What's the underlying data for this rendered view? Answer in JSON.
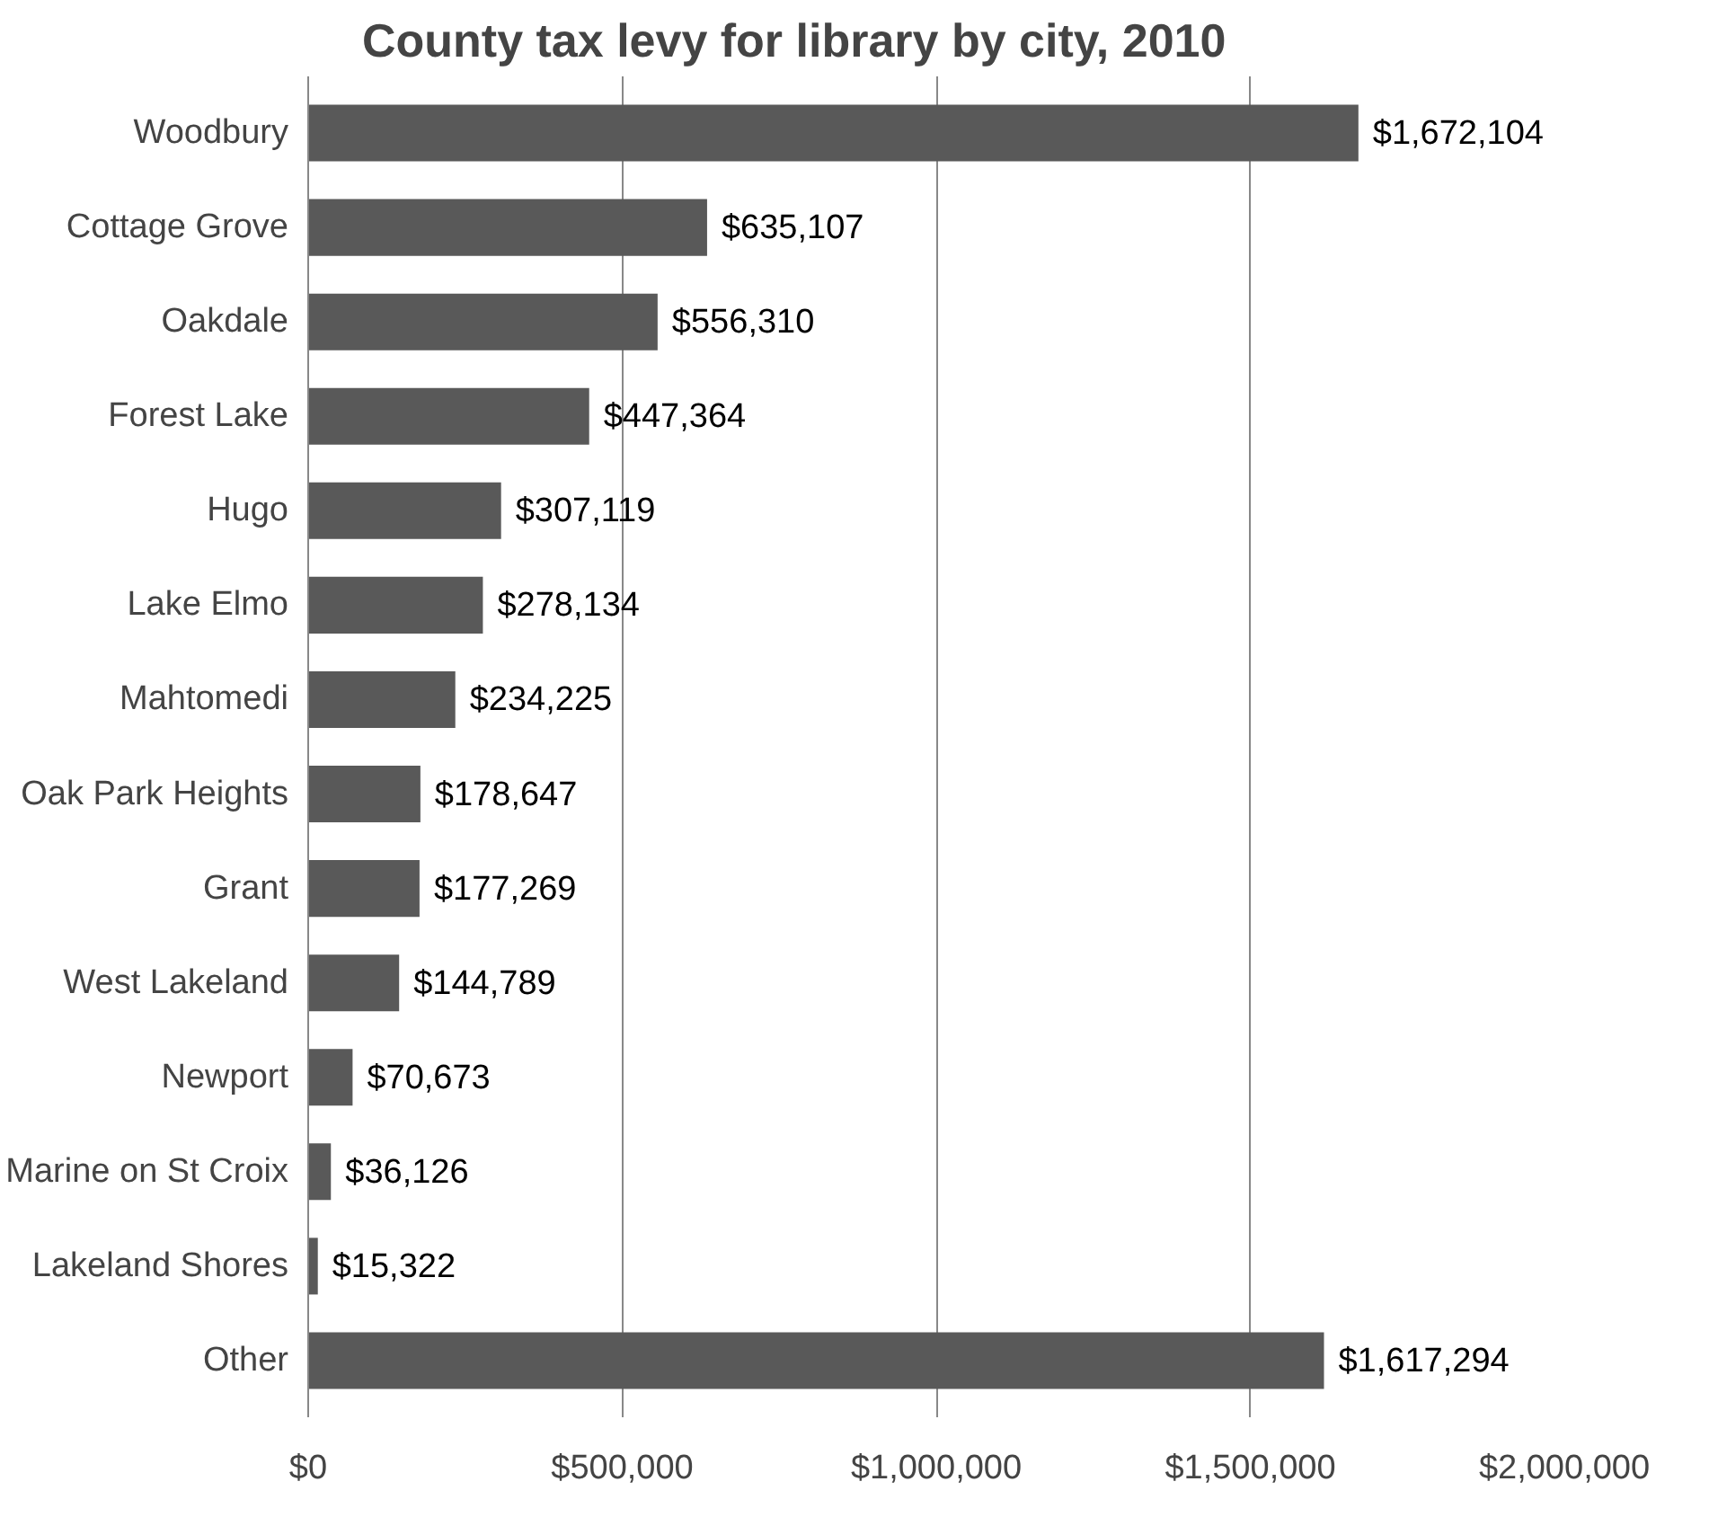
{
  "chart_data": {
    "type": "bar",
    "orientation": "horizontal",
    "title": "County tax levy for library by city, 2010",
    "categories": [
      "Woodbury",
      "Cottage Grove",
      "Oakdale",
      "Forest Lake",
      "Hugo",
      "Lake Elmo",
      "Mahtomedi",
      "Oak Park Heights",
      "Grant",
      "West Lakeland",
      "Newport",
      "Marine on St Croix",
      "Lakeland Shores",
      "Other"
    ],
    "values": [
      1672104,
      635107,
      556310,
      447364,
      307119,
      278134,
      234225,
      178647,
      177269,
      144789,
      70673,
      36126,
      15322,
      1617294
    ],
    "value_labels": [
      "$1,672,104",
      "$635,107",
      "$556,310",
      "$447,364",
      "$307,119",
      "$278,134",
      "$234,225",
      "$178,647",
      "$177,269",
      "$144,789",
      "$70,673",
      "$36,126",
      "$15,322",
      "$1,617,294"
    ],
    "color": "#595959",
    "xlim": [
      0,
      2000000
    ],
    "xticks": [
      {
        "value": 0,
        "label": "$0"
      },
      {
        "value": 500000,
        "label": "$500,000"
      },
      {
        "value": 1000000,
        "label": "$1,000,000"
      },
      {
        "value": 1500000,
        "label": "$1,500,000"
      },
      {
        "value": 2000000,
        "label": "$2,000,000"
      }
    ],
    "grid": "x"
  }
}
